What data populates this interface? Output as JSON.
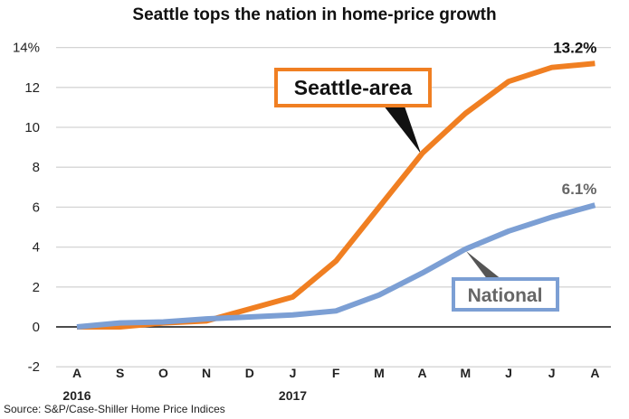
{
  "chart_data": {
    "type": "line",
    "title": "Seattle tops the nation in home-price growth",
    "source": "Source: S&P/Case-Shiller Home Price Indices",
    "xlabel": "",
    "ylabel": "",
    "categories": [
      "A",
      "S",
      "O",
      "N",
      "D",
      "J",
      "F",
      "M",
      "A",
      "M",
      "J",
      "J",
      "A"
    ],
    "year_labels": [
      {
        "index": 0,
        "label": "2016"
      },
      {
        "index": 5,
        "label": "2017"
      }
    ],
    "ylim": [
      -2,
      14
    ],
    "yticks": [
      -2,
      0,
      2,
      4,
      6,
      8,
      10,
      12,
      14
    ],
    "ytick_labels": [
      "-2",
      "0",
      "2",
      "4",
      "6",
      "8",
      "10",
      "12",
      "14%"
    ],
    "grid": true,
    "series": [
      {
        "name": "Seattle-area",
        "color": "#F07F22",
        "values": [
          0,
          0,
          0.2,
          0.3,
          0.9,
          1.5,
          3.3,
          6.0,
          8.7,
          10.7,
          12.3,
          13.0,
          13.2
        ],
        "end_label": "13.2%",
        "end_label_color": "#111111"
      },
      {
        "name": "National",
        "color": "#7C9FD4",
        "values": [
          0,
          0.2,
          0.25,
          0.4,
          0.5,
          0.6,
          0.8,
          1.6,
          2.7,
          3.9,
          4.8,
          5.5,
          6.1
        ],
        "end_label": "6.1%",
        "end_label_color": "#666666"
      }
    ]
  }
}
